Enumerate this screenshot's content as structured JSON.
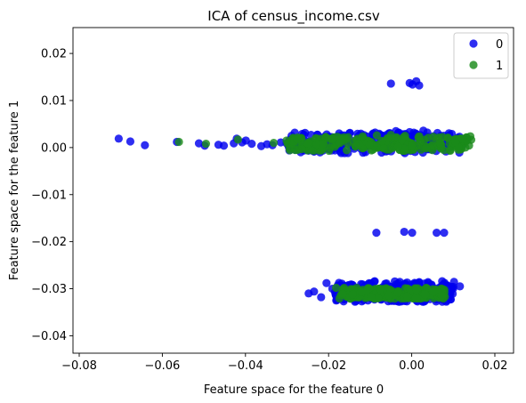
{
  "chart_data": {
    "type": "scatter",
    "title": "ICA of census_income.csv",
    "xlabel": "Feature space for the feature 0",
    "ylabel": "Feature space for the feature 1",
    "xlim": [
      -0.0815,
      0.0245
    ],
    "ylim": [
      -0.0437,
      0.0255
    ],
    "xticks": [
      -0.08,
      -0.06,
      -0.04,
      -0.02,
      0.0,
      0.02
    ],
    "xtick_labels": [
      "−0.08",
      "−0.06",
      "−0.04",
      "−0.02",
      "0.00",
      "0.02"
    ],
    "yticks": [
      0.02,
      0.01,
      0.0,
      -0.01,
      -0.02,
      -0.03,
      -0.04
    ],
    "ytick_labels": [
      "0.02",
      "0.01",
      "0.00",
      "−0.01",
      "−0.02",
      "−0.03",
      "−0.04"
    ],
    "grid": false,
    "legend_position": "top-right",
    "series": [
      {
        "name": "0",
        "color": "#0000ee",
        "points": [
          [
            -0.0705,
            0.0019
          ],
          [
            -0.0677,
            0.0013
          ],
          [
            -0.0642,
            0.0005
          ],
          [
            -0.0565,
            0.0012
          ],
          [
            -0.0512,
            0.0009
          ],
          [
            -0.0498,
            0.0004
          ],
          [
            -0.0465,
            0.0006
          ],
          [
            -0.0452,
            0.0004
          ],
          [
            -0.0428,
            0.0009
          ],
          [
            -0.0421,
            0.0019
          ],
          [
            -0.0408,
            0.0011
          ],
          [
            -0.0399,
            0.0015
          ],
          [
            -0.0385,
            0.0008
          ],
          [
            -0.0362,
            0.0003
          ],
          [
            -0.0348,
            0.0007
          ],
          [
            -0.0335,
            0.0005
          ],
          [
            -0.0315,
            0.0011
          ],
          [
            -0.0301,
            0.0009
          ],
          [
            -0.0288,
            0.0013
          ],
          [
            -0.0272,
            0.0008
          ],
          [
            -0.0255,
            0.0014
          ],
          [
            -0.0238,
            0.001
          ],
          [
            -0.0222,
            0.0018
          ],
          [
            -0.0205,
            0.0006
          ],
          [
            -0.0188,
            0.0021
          ],
          [
            -0.0172,
            0.0004
          ],
          [
            -0.0155,
            0.0024
          ],
          [
            -0.0138,
            0.0002
          ],
          [
            -0.0121,
            0.0026
          ],
          [
            -0.0105,
            0.0008
          ],
          [
            -0.0088,
            0.0032
          ],
          [
            -0.0071,
            0.0
          ],
          [
            -0.0055,
            0.003
          ],
          [
            -0.0038,
            0.0035
          ],
          [
            -0.0021,
            0.0004
          ],
          [
            -0.0005,
            0.0033
          ],
          [
            0.0012,
            0.0028
          ],
          [
            0.0028,
            0.0036
          ],
          [
            0.0045,
            0.0002
          ],
          [
            0.0062,
            0.0031
          ],
          [
            0.0078,
            0.0025
          ],
          [
            0.0095,
            0.0008
          ],
          [
            0.0111,
            0.0021
          ],
          [
            0.012,
            0.0013
          ],
          [
            -0.005,
            0.0136
          ],
          [
            -0.0005,
            0.0137
          ],
          [
            0.0002,
            0.0134
          ],
          [
            0.0011,
            0.0141
          ],
          [
            0.0018,
            0.0132
          ],
          [
            -0.0085,
            -0.0181
          ],
          [
            -0.0018,
            -0.0179
          ],
          [
            0.0001,
            -0.0181
          ],
          [
            0.006,
            -0.0181
          ],
          [
            0.0078,
            -0.0181
          ],
          [
            -0.0248,
            -0.031
          ],
          [
            -0.0235,
            -0.0306
          ],
          [
            -0.0218,
            -0.0318
          ],
          [
            -0.0205,
            -0.0288
          ],
          [
            -0.0191,
            -0.03
          ],
          [
            -0.0178,
            -0.0293
          ],
          [
            -0.0162,
            -0.0322
          ],
          [
            -0.0148,
            -0.0301
          ],
          [
            -0.0133,
            -0.0319
          ],
          [
            -0.0118,
            -0.0291
          ],
          [
            -0.0104,
            -0.0314
          ],
          [
            -0.0089,
            -0.0284
          ],
          [
            -0.0075,
            -0.0322
          ],
          [
            -0.0061,
            -0.0296
          ],
          [
            -0.0046,
            -0.031
          ],
          [
            -0.0032,
            -0.0324
          ],
          [
            -0.0018,
            -0.0291
          ],
          [
            -0.0004,
            -0.0317
          ],
          [
            0.0011,
            -0.0302
          ],
          [
            0.0025,
            -0.0326
          ],
          [
            0.004,
            -0.0288
          ],
          [
            0.0055,
            -0.0317
          ],
          [
            0.0071,
            -0.0297
          ],
          [
            0.0088,
            -0.0307
          ],
          [
            0.01,
            -0.0296
          ],
          [
            0.0116,
            -0.0295
          ]
        ]
      },
      {
        "name": "1",
        "color": "#1a8a1a",
        "points": [
          [
            -0.056,
            0.0012
          ],
          [
            -0.0495,
            0.0008
          ],
          [
            -0.0418,
            0.0017
          ],
          [
            -0.0332,
            0.001
          ],
          [
            -0.0301,
            0.0015
          ],
          [
            -0.0276,
            0.0018
          ],
          [
            -0.0252,
            0.001
          ],
          [
            -0.0231,
            0.002
          ],
          [
            -0.0212,
            0.0008
          ],
          [
            -0.0191,
            0.0019
          ],
          [
            -0.0172,
            0.001
          ],
          [
            -0.0153,
            0.0022
          ],
          [
            -0.0135,
            0.0003
          ],
          [
            -0.0118,
            0.0024
          ],
          [
            -0.0101,
            0.0006
          ],
          [
            -0.0084,
            0.0026
          ],
          [
            -0.0067,
            -0.0002
          ],
          [
            -0.005,
            0.0027
          ],
          [
            -0.0033,
            0.0001
          ],
          [
            -0.0016,
            0.0025
          ],
          [
            0.0,
            0.0004
          ],
          [
            0.0018,
            0.0024
          ],
          [
            0.0035,
            -0.0002
          ],
          [
            0.0052,
            0.0023
          ],
          [
            0.0069,
            0.0009
          ],
          [
            0.0087,
            0.0021
          ],
          [
            0.0105,
            0.0012
          ],
          [
            0.0122,
            0.0019
          ],
          [
            0.0141,
            0.0024
          ],
          [
            -0.0182,
            -0.0298
          ],
          [
            -0.0166,
            -0.0311
          ],
          [
            -0.0142,
            -0.0312
          ],
          [
            -0.012,
            -0.0306
          ],
          [
            -0.0098,
            -0.0318
          ],
          [
            -0.0076,
            -0.03
          ],
          [
            -0.0055,
            -0.0314
          ],
          [
            -0.0033,
            -0.0308
          ],
          [
            -0.0011,
            -0.0316
          ],
          [
            0.0011,
            -0.0302
          ],
          [
            0.0032,
            -0.0312
          ],
          [
            0.0052,
            -0.0306
          ],
          [
            0.0072,
            -0.0314
          ]
        ]
      }
    ],
    "dense_bands": [
      {
        "series": "0",
        "x": [
          -0.03,
          0.0125
        ],
        "y": [
          -0.0012,
          0.0032
        ]
      },
      {
        "series": "0",
        "x": [
          -0.0185,
          0.0105
        ],
        "y": [
          -0.0328,
          -0.0284
        ]
      },
      {
        "series": "1",
        "x": [
          -0.03,
          0.0145
        ],
        "y": [
          -0.0007,
          0.0023
        ]
      },
      {
        "series": "1",
        "x": [
          -0.0175,
          0.008
        ],
        "y": [
          -0.0321,
          -0.0298
        ]
      }
    ]
  }
}
